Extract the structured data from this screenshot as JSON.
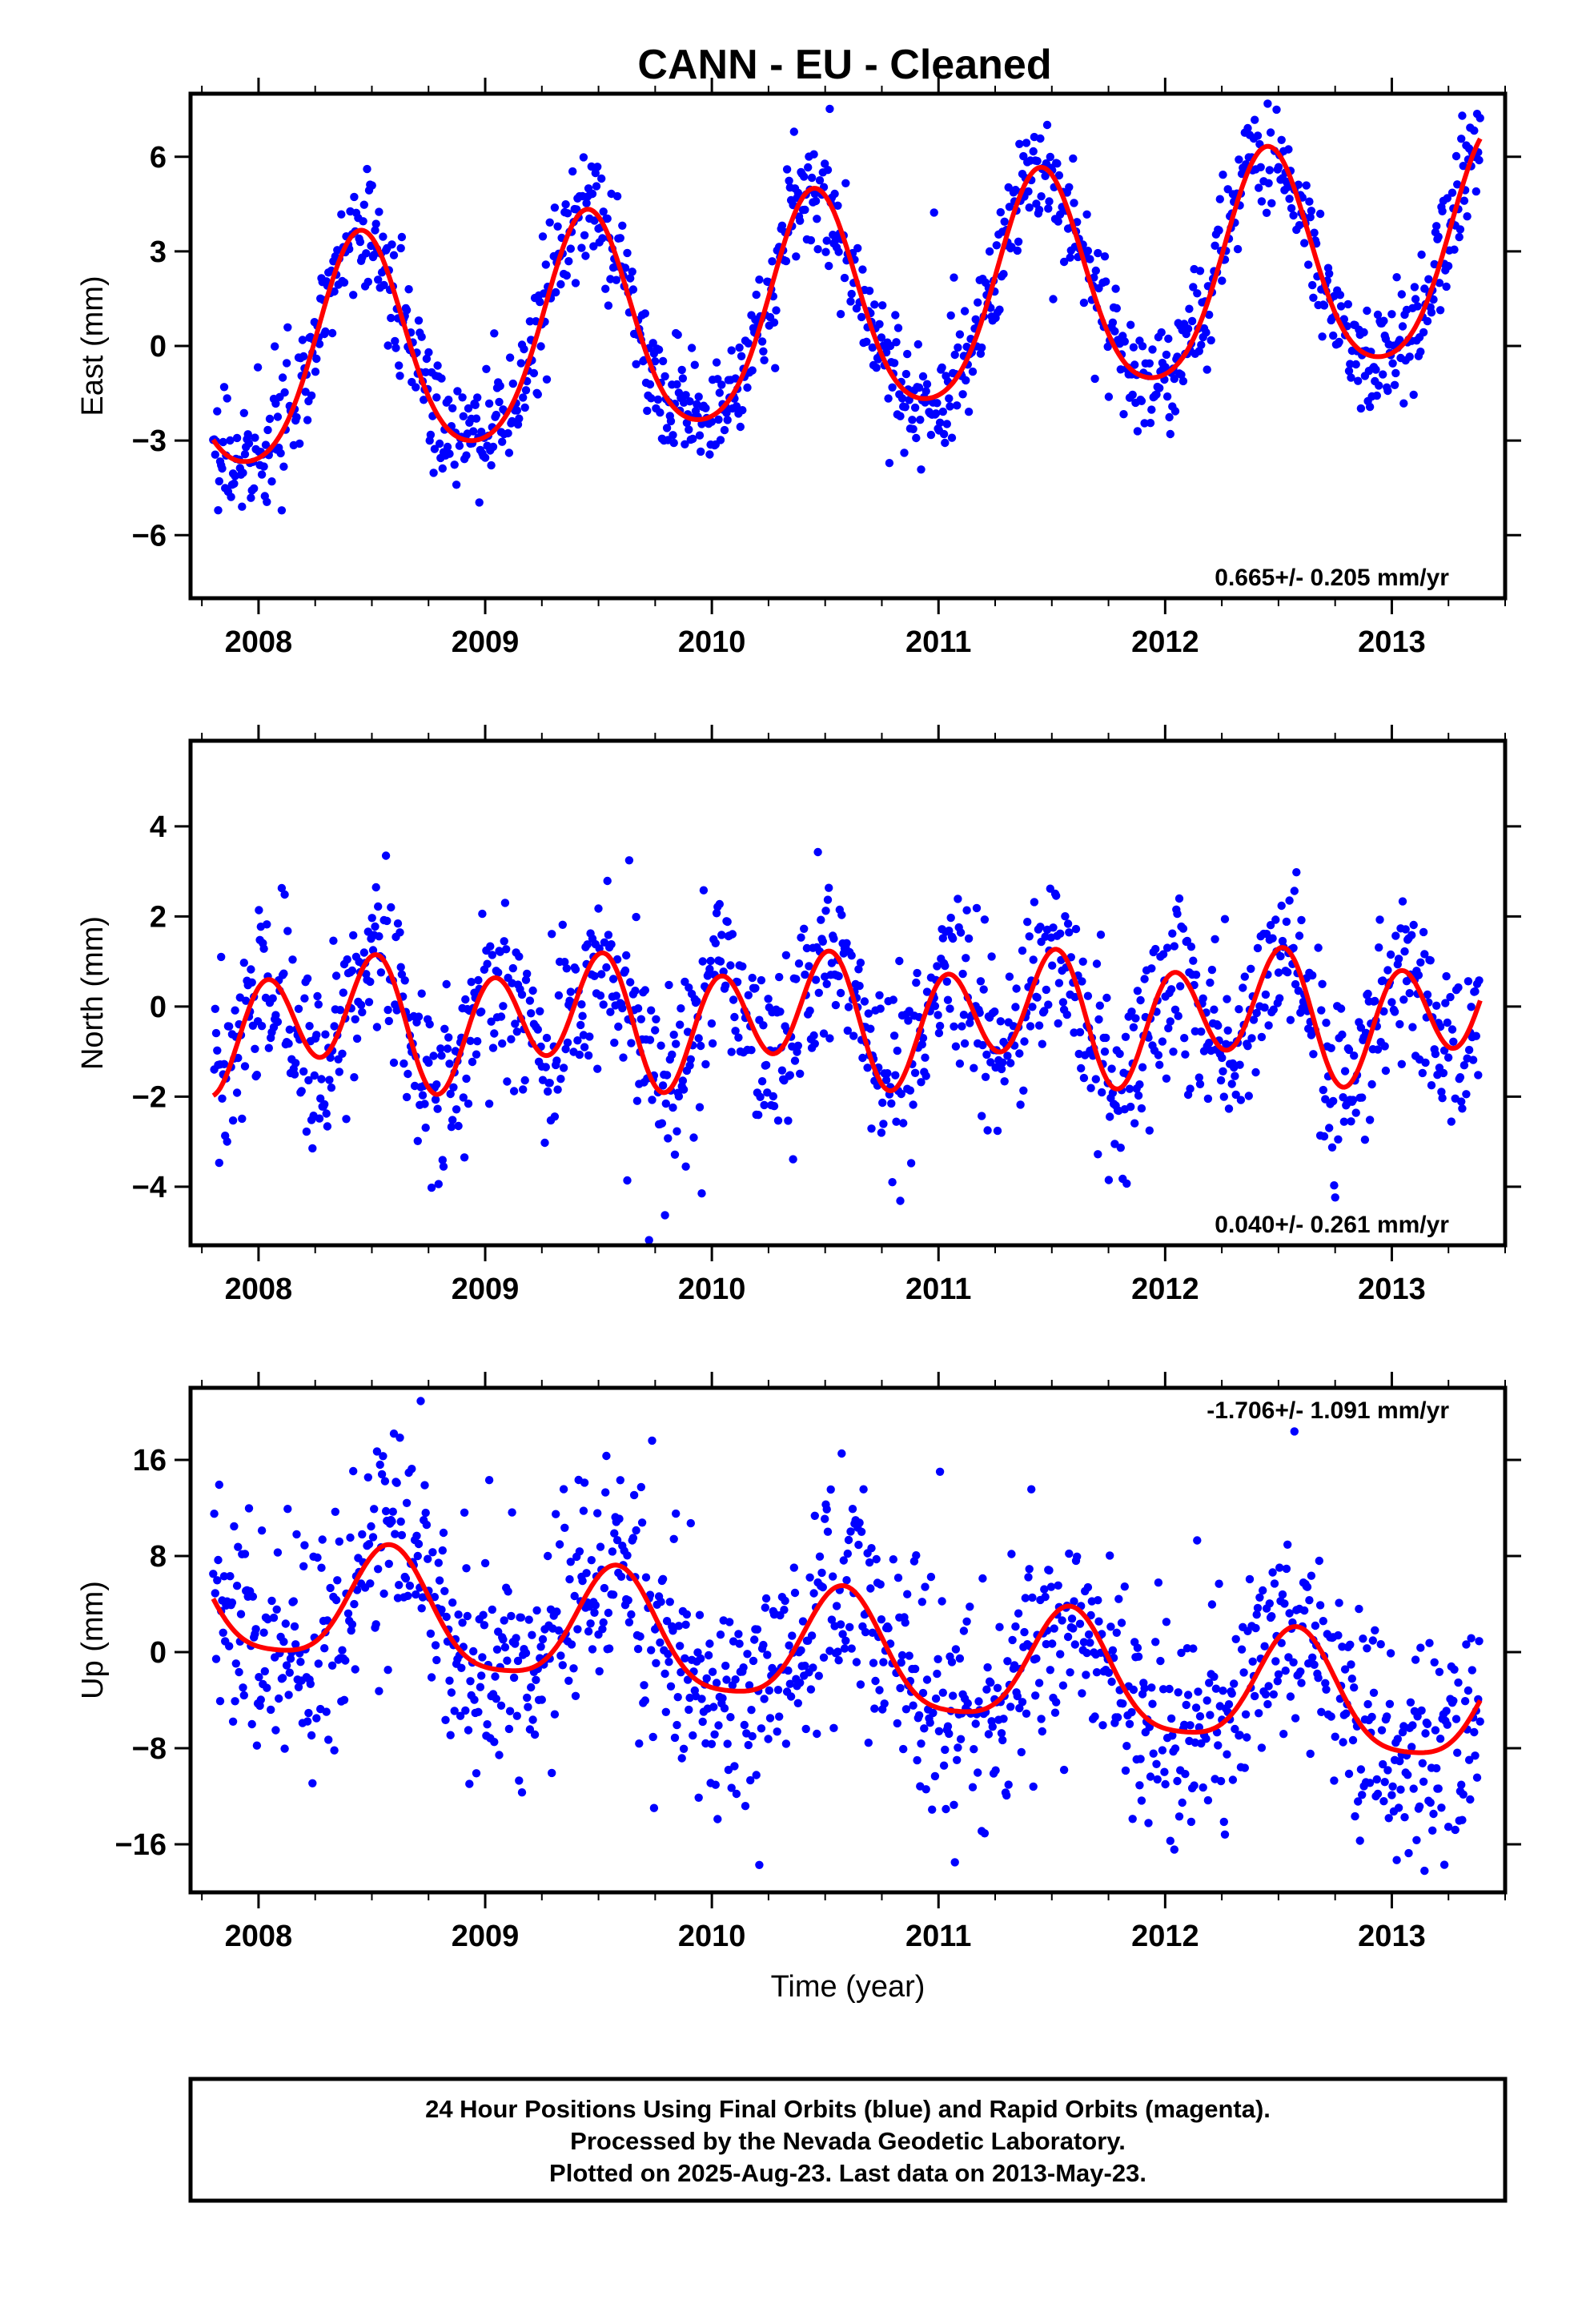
{
  "title": "CANN  - EU - Cleaned",
  "colors": {
    "final_orbits": "#0000ff",
    "model_fit": "#ff0000",
    "frame": "#000000"
  },
  "chart_data": [
    {
      "type": "scatter",
      "component": "east",
      "ylabel": "East (mm)",
      "xlabel": "",
      "xlim": [
        2007.7,
        2013.5
      ],
      "ylim": [
        -8,
        8
      ],
      "x_ticks": [
        2008,
        2009,
        2010,
        2011,
        2012,
        2013
      ],
      "y_ticks": [
        -6,
        -3,
        0,
        3,
        6
      ],
      "rate_text": "0.665+/- 0.205 mm/yr",
      "rate_position": "bottom-right",
      "data_span": [
        2007.8,
        2013.39
      ],
      "model": {
        "offset": 1.1,
        "rate_mm_yr": 0.665,
        "ref_epoch": 2010.6,
        "annual_amp": 3.5,
        "annual_peak": 2008.45,
        "semiannual_amp": 0.5,
        "semiannual_peak": 2008.45
      },
      "scatter_sigma": 0.9
    },
    {
      "type": "scatter",
      "component": "north",
      "ylabel": "North (mm)",
      "xlabel": "",
      "xlim": [
        2007.7,
        2013.5
      ],
      "ylim": [
        -5.3,
        5.9
      ],
      "x_ticks": [
        2008,
        2009,
        2010,
        2011,
        2012,
        2013
      ],
      "y_ticks": [
        -4,
        -2,
        0,
        2,
        4
      ],
      "rate_text": "0.040+/- 0.261 mm/yr",
      "rate_position": "bottom-right",
      "data_span": [
        2007.8,
        2013.39
      ],
      "model": {
        "offset": -0.25,
        "rate_mm_yr": 0.04,
        "ref_epoch": 2010.6,
        "annual_amp": 0.5,
        "annual_peak": 2008.37,
        "semiannual_amp": 1.2,
        "semiannual_peak": 2008.03
      },
      "scatter_sigma": 1.0
    },
    {
      "type": "scatter",
      "component": "up",
      "ylabel": "Up (mm)",
      "xlabel": "Time (year)",
      "xlim": [
        2007.7,
        2013.5
      ],
      "ylim": [
        -20,
        22
      ],
      "x_ticks": [
        2008,
        2009,
        2010,
        2011,
        2012,
        2013
      ],
      "y_ticks": [
        -16,
        -8,
        0,
        8,
        16
      ],
      "rate_text": "-1.706+/- 1.091 mm/yr",
      "rate_position": "top-right",
      "data_span": [
        2007.8,
        2013.39
      ],
      "model": {
        "offset": -0.3,
        "rate_mm_yr": -1.706,
        "ref_epoch": 2010.6,
        "annual_amp": 4.8,
        "annual_peak": 2008.58,
        "semiannual_amp": 1.0,
        "semiannual_peak": 2008.58
      },
      "scatter_sigma": 4.8
    }
  ],
  "footer": {
    "line1": "24 Hour Positions Using Final Orbits (blue) and Rapid Orbits (magenta).",
    "line2": "Processed by the Nevada Geodetic Laboratory.",
    "line3": "Plotted on 2025-Aug-23. Last data on 2013-May-23."
  }
}
